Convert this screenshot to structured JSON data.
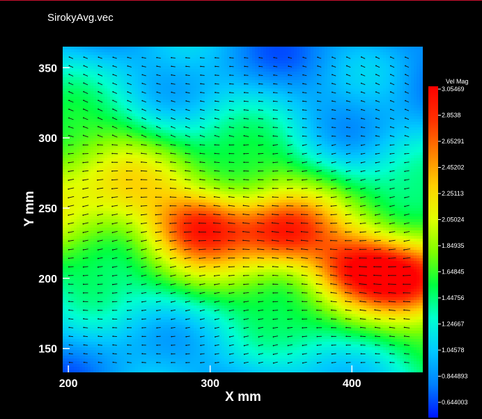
{
  "window": {
    "title": "SirokyAvg.vec"
  },
  "chart_data": {
    "type": "heatmap",
    "overlay": "vector-field",
    "title": "SirokyAvg.vec",
    "xlabel": "X mm",
    "ylabel": "Y mm",
    "xlim": [
      196,
      450
    ],
    "ylim": [
      133,
      365
    ],
    "x_ticks": [
      "200",
      "300",
      "400"
    ],
    "y_ticks": [
      "150",
      "200",
      "250",
      "300",
      "350"
    ],
    "colorbar": {
      "label": "Vel Mag",
      "min": 0.644003,
      "max": 3.05469,
      "tick_labels": [
        "3.05469",
        "2.8538",
        "2.65291",
        "2.45202",
        "2.25113",
        "2.05024",
        "1.84935",
        "1.64845",
        "1.44756",
        "1.24667",
        "1.04578",
        "0.844893",
        "0.644003"
      ],
      "colors": [
        "#0015ff",
        "#0080ff",
        "#00c8ff",
        "#00ffd0",
        "#00ff40",
        "#80ff00",
        "#e0ff00",
        "#ffd000",
        "#ff8000",
        "#ff3000",
        "#ff0000"
      ]
    },
    "jet_centerline": [
      [
        196,
        262
      ],
      [
        240,
        258
      ],
      [
        290,
        240
      ],
      [
        350,
        232
      ],
      [
        400,
        210
      ],
      [
        450,
        202
      ]
    ],
    "peaks": [
      {
        "x": 295,
        "y": 237,
        "value": 2.95
      },
      {
        "x": 352,
        "y": 232,
        "value": 2.95
      },
      {
        "x": 405,
        "y": 208,
        "value": 3.0
      },
      {
        "x": 440,
        "y": 200,
        "value": 2.95
      }
    ],
    "vector_direction": "negative-x",
    "grid_on": false
  }
}
